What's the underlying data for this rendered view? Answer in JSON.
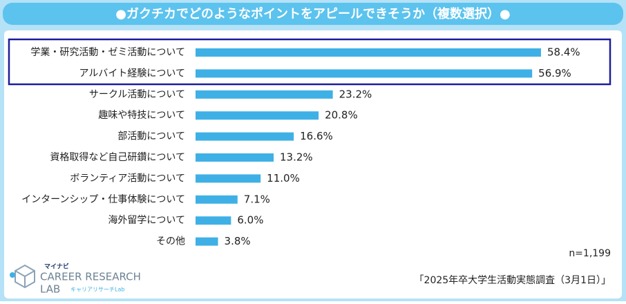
{
  "chart_data": {
    "type": "bar",
    "orientation": "horizontal",
    "title": "●ガクチカでどのようなポイントをアピールできそうか（複数選択）●",
    "categories": [
      "学業・研究活動・ゼミ活動について",
      "アルバイト経験について",
      "サークル活動について",
      "趣味や特技について",
      "部活動について",
      "資格取得など自己研鑽について",
      "ボランティア活動について",
      "インターンシップ・仕事体験について",
      "海外留学について",
      "その他"
    ],
    "values": [
      58.4,
      56.9,
      23.2,
      20.8,
      16.6,
      13.2,
      11.0,
      7.1,
      6.0,
      3.8
    ],
    "value_labels": [
      "58.4%",
      "56.9%",
      "23.2%",
      "20.8%",
      "16.6%",
      "13.2%",
      "11.0%",
      "7.1%",
      "6.0%",
      "3.8%"
    ],
    "color": "#3fb0e6",
    "note": "n=1,199",
    "source": "「2025年卒大学生活動実態調査（3月1日）」"
  },
  "logo": {
    "brand": "マイナビ",
    "name": "CAREER RESEARCH",
    "sub": "LAB",
    "sub_jp": "キャリアリサーチLab"
  }
}
